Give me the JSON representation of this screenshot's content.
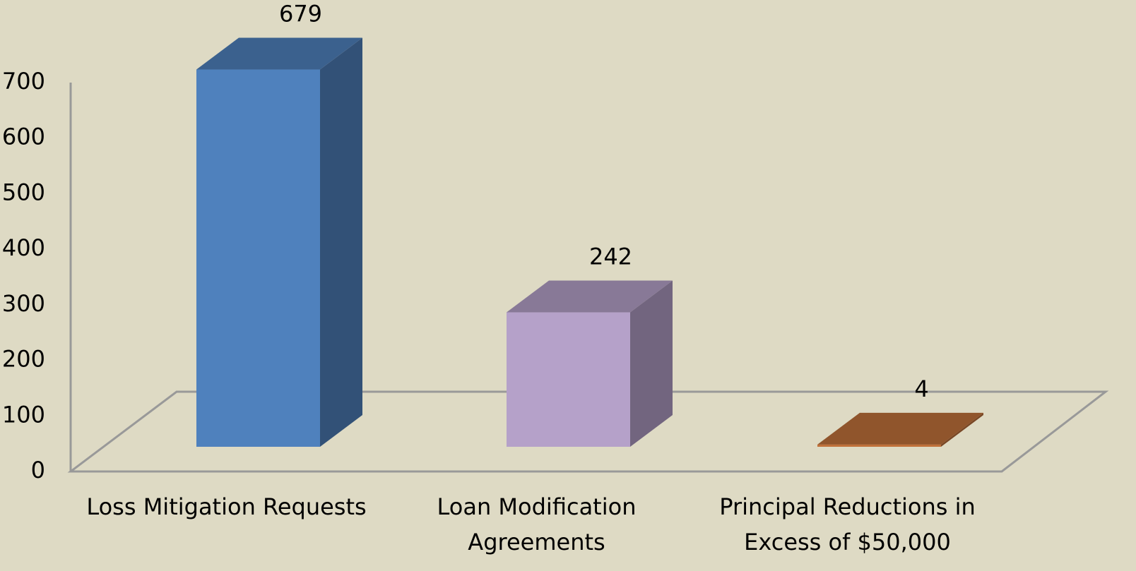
{
  "chart_data": {
    "type": "bar3d",
    "categories": [
      "Loss Mitigation Requests",
      "Loan Modification Agreements",
      "Principal Reductions in Excess of $50,000"
    ],
    "values": [
      679,
      242,
      4
    ],
    "colors": [
      "#4f81bd",
      "#b5a1c9",
      "#c0713a"
    ],
    "ylim": [
      0,
      700
    ],
    "yticks": [
      0,
      100,
      200,
      300,
      400,
      500,
      600,
      700
    ]
  }
}
